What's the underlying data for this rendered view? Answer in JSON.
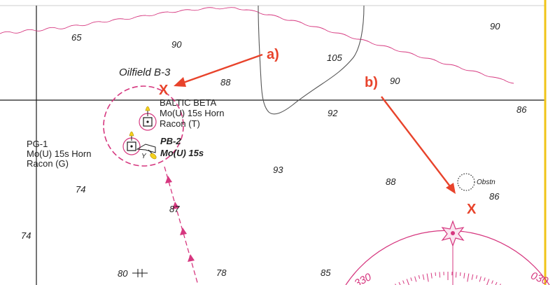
{
  "colors": {
    "annotation_red": "#e8432b",
    "magenta": "#d6377f",
    "light_yellow": "#f4d11d",
    "border_yellow": "#f0c419",
    "land_line": "#555555",
    "depth_contour": "#d6377f"
  },
  "depths": [
    "65",
    "90",
    "90",
    "105",
    "88",
    "90",
    "92",
    "86",
    "93",
    "88",
    "86",
    "74",
    "87",
    "74",
    "80",
    "78",
    "85"
  ],
  "labels": {
    "oilfield": "Oilfield B-3",
    "baltic_name": "BALTIC BETA",
    "baltic_light": "Mo(U) 15s Horn",
    "baltic_racon": "Racon (T)",
    "pg_name": "PG-1",
    "pg_light": "Mo(U) 15s Horn",
    "pg_racon": "Racon (G)",
    "pb_name": "PB-2",
    "pb_light": "Mo(U) 15s",
    "buoy_letter": "Y",
    "obstn": "Obstn"
  },
  "annotations": {
    "a_label": "a)",
    "b_label": "b)",
    "mark": "X"
  },
  "compass": {
    "left_label": "330",
    "right_label": "030"
  }
}
